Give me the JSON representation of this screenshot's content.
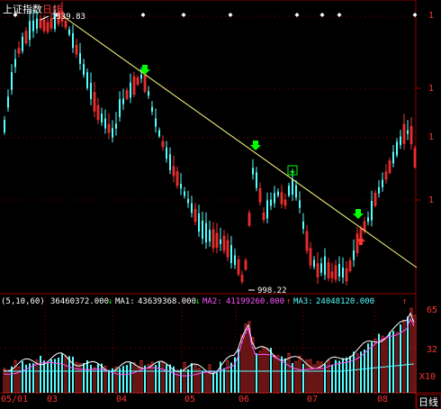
{
  "header": {
    "index_name": "上证指数",
    "period": "日线"
  },
  "price_panel": {
    "high_label": "1339.83",
    "low_label": "998.22",
    "right_axis_ticks": [
      "1",
      "1",
      "1",
      "1"
    ]
  },
  "volume_panel": {
    "ma_params": "(5,10,60)",
    "vol_value": "36460372.000",
    "ma1_label": "MA1:",
    "ma1_value": "43639368.000",
    "ma2_label": "MA2:",
    "ma2_value": "41199260.000",
    "ma3_label": "MA3:",
    "ma3_value": "24048120.000",
    "right_ticks": [
      "65",
      "32"
    ],
    "unit_label": "X10"
  },
  "time_axis": {
    "labels": [
      "05/01",
      "03",
      "04",
      "05",
      "06",
      "07",
      "08"
    ]
  },
  "footer": {
    "period_button": "日线"
  },
  "colors": {
    "background": "#000000",
    "grid": "#8b0000",
    "up_candle": "#ff3232",
    "down_candle": "#54ffff",
    "trend_line": "#ffff80",
    "ma1": "#ffffff",
    "ma2": "#ff55ff",
    "ma3": "#55ffff",
    "text_white": "#ffffff",
    "text_red": "#ff3232",
    "signal_green": "#00ff00"
  },
  "icons": {
    "top_markers": "diamond-marker-icon",
    "buy_signal": "green-down-arrow-icon",
    "sell_signal": "red-up-arrow-icon"
  }
}
